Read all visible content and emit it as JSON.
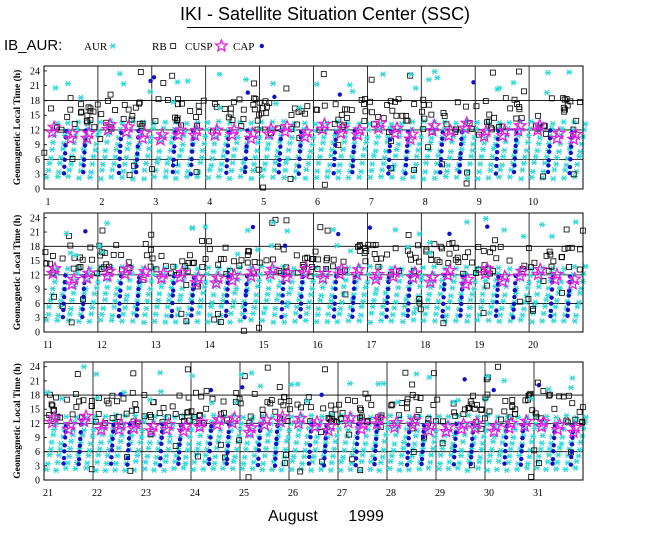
{
  "header": {
    "title": "IKI - Satellite Situation Center (SSC)",
    "dataset": "IB_AUR:"
  },
  "legend": [
    {
      "label": "AUR",
      "marker": "asterisk",
      "color": "#30d8d8"
    },
    {
      "label": "RB",
      "marker": "open-square",
      "color": "#000000"
    },
    {
      "label": "CUSP",
      "marker": "open-star",
      "color": "#e020e0"
    },
    {
      "label": "CAP",
      "marker": "filled-circle",
      "color": "#1010c8"
    }
  ],
  "footer": {
    "month": "August",
    "year": "1999"
  },
  "chart_data": [
    {
      "type": "scatter",
      "ylabel": "Geomagnetic Local Time (h)",
      "yticks": [
        0,
        3,
        6,
        9,
        12,
        15,
        18,
        21,
        24
      ],
      "ylim": [
        0,
        25
      ],
      "xticks": [
        "1",
        "2",
        "3",
        "4",
        "5",
        "6",
        "7",
        "8",
        "9",
        "10"
      ],
      "xlim": [
        1,
        11
      ],
      "grid": true,
      "series": [
        {
          "name": "AUR",
          "y_band": [
            2,
            14
          ],
          "pattern": "diagonal streaks rising through the day"
        },
        {
          "name": "RB",
          "y_band": [
            0,
            24
          ],
          "pattern": "scattered, dense band 12–18 h"
        },
        {
          "name": "CUSP",
          "y_band": [
            9,
            13
          ],
          "pattern": "clusters near 10–12 h"
        },
        {
          "name": "CAP",
          "y_band": [
            3,
            13
          ],
          "pattern": "vertical columns"
        }
      ]
    },
    {
      "type": "scatter",
      "ylabel": "Geomagnetic Local Time (h)",
      "yticks": [
        0,
        3,
        6,
        9,
        12,
        15,
        18,
        21,
        24
      ],
      "ylim": [
        0,
        25
      ],
      "xticks": [
        "11",
        "12",
        "13",
        "14",
        "15",
        "16",
        "17",
        "18",
        "19",
        "20"
      ],
      "xlim": [
        11,
        21
      ],
      "grid": true,
      "series": [
        {
          "name": "AUR",
          "y_band": [
            2,
            14
          ],
          "pattern": "diagonal streaks rising through the day"
        },
        {
          "name": "RB",
          "y_band": [
            0,
            24
          ],
          "pattern": "scattered, dense band 12–18 h"
        },
        {
          "name": "CUSP",
          "y_band": [
            9,
            13
          ],
          "pattern": "clusters near 10–12 h"
        },
        {
          "name": "CAP",
          "y_band": [
            3,
            13
          ],
          "pattern": "vertical columns"
        }
      ]
    },
    {
      "type": "scatter",
      "ylabel": "Geomagnetic Local Time (h)",
      "yticks": [
        0,
        3,
        6,
        9,
        12,
        15,
        18,
        21,
        24
      ],
      "ylim": [
        0,
        25
      ],
      "xticks": [
        "21",
        "22",
        "23",
        "24",
        "25",
        "26",
        "27",
        "28",
        "29",
        "30",
        "31"
      ],
      "xlim": [
        21,
        32
      ],
      "grid": true,
      "series": [
        {
          "name": "AUR",
          "y_band": [
            2,
            14
          ],
          "pattern": "diagonal streaks rising through the day"
        },
        {
          "name": "RB",
          "y_band": [
            0,
            24
          ],
          "pattern": "scattered, dense band 12–18 h"
        },
        {
          "name": "CUSP",
          "y_band": [
            9,
            13
          ],
          "pattern": "clusters near 10–12 h"
        },
        {
          "name": "CAP",
          "y_band": [
            3,
            13
          ],
          "pattern": "vertical columns"
        }
      ]
    }
  ]
}
